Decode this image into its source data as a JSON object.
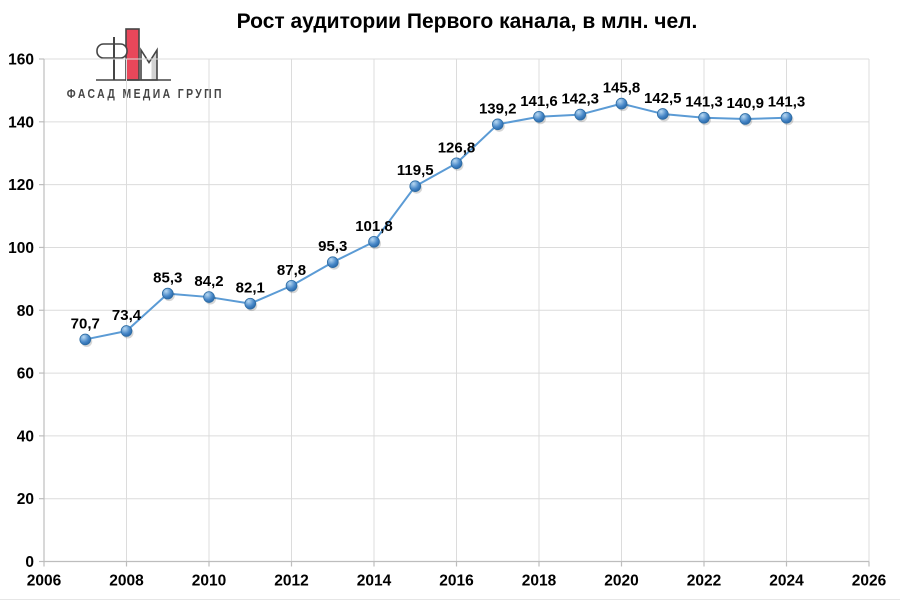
{
  "logo": {
    "text": "ФАСАД МЕДИА ГРУПП",
    "colors": {
      "red": "#e8475a",
      "outline": "#454545",
      "gray": "#d2d2d2"
    }
  },
  "chart_data": {
    "type": "line",
    "title": "Рост аудитории Первого канала, в млн. чел.",
    "xlabel": "",
    "ylabel": "",
    "x": [
      2007,
      2008,
      2009,
      2010,
      2011,
      2012,
      2013,
      2014,
      2015,
      2016,
      2017,
      2018,
      2019,
      2020,
      2021,
      2022,
      2023,
      2024
    ],
    "values": [
      70.7,
      73.4,
      85.3,
      84.2,
      82.1,
      87.8,
      95.3,
      101.8,
      119.5,
      126.8,
      139.2,
      141.6,
      142.3,
      145.8,
      142.5,
      141.3,
      140.9,
      141.3
    ],
    "point_labels": [
      "70,7",
      "73,4",
      "85,3",
      "84,2",
      "82,1",
      "87,8",
      "95,3",
      "101,8",
      "119,5",
      "126,8",
      "139,2",
      "141,6",
      "142,3",
      "145,8",
      "142,5",
      "141,3",
      "140,9",
      "141,3"
    ],
    "xlim": [
      2006,
      2026
    ],
    "ylim": [
      0,
      160
    ],
    "x_ticks": [
      2006,
      2008,
      2010,
      2012,
      2014,
      2016,
      2018,
      2020,
      2022,
      2024,
      2026
    ],
    "y_ticks": [
      0,
      20,
      40,
      60,
      80,
      100,
      120,
      140,
      160
    ],
    "grid": true,
    "legend_position": "none",
    "colors": {
      "line": "#5b9bd5",
      "marker_light": "#b9d9f2",
      "marker_mid": "#4888c8",
      "marker_dark": "#1e5c9e",
      "marker_stroke": "#2e6da4",
      "grid": "#dcdcdc",
      "axis": "#bdbdbd",
      "label": "#000000"
    }
  }
}
